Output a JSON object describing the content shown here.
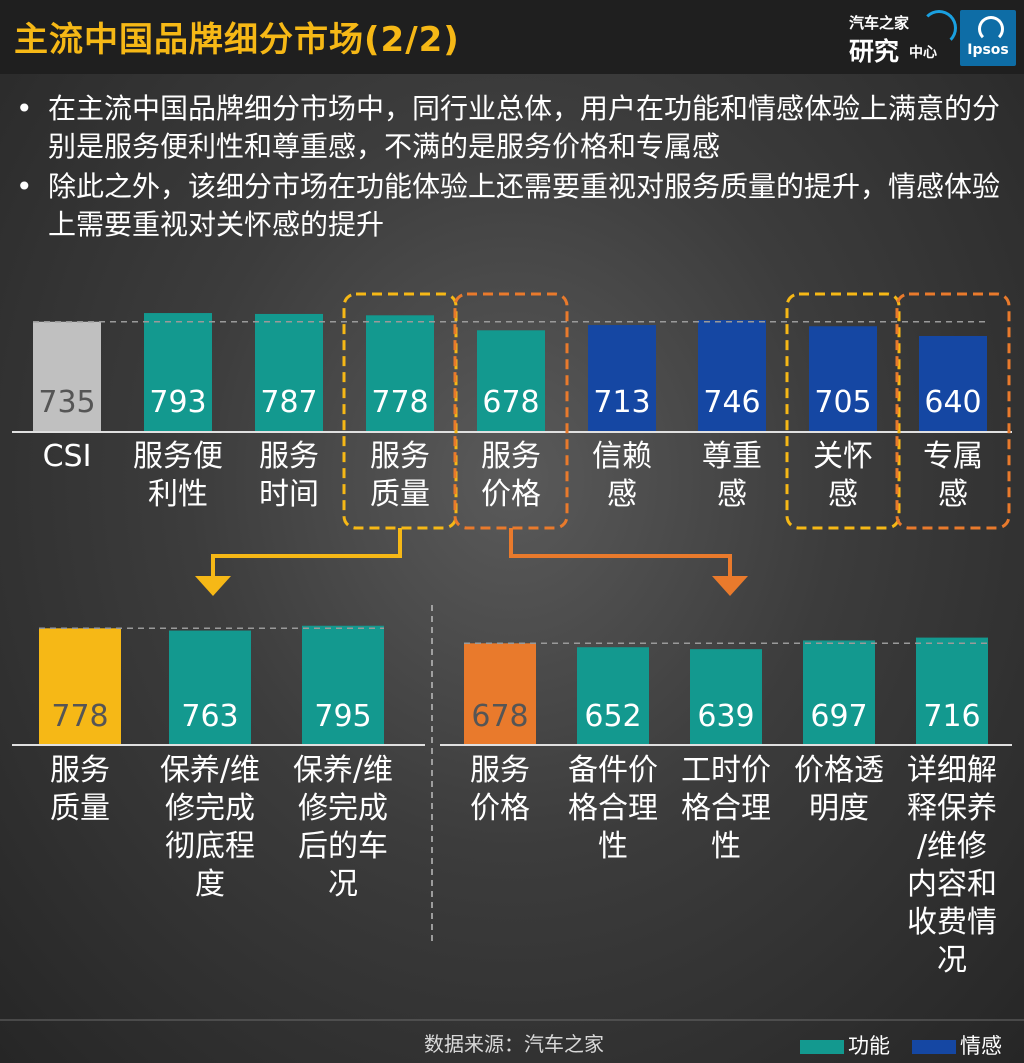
{
  "header": {
    "title": "主流中国品牌细分市场(2/2)",
    "logo_auto_top": "汽车之家",
    "logo_auto_main": "研究",
    "logo_auto_sub": "中心",
    "logo_ipsos": "Ipsos"
  },
  "bullets": [
    {
      "dot": "•",
      "text": "在主流中国品牌细分市场中，同行业总体，用户在功能和情感体验上满意的分别是服务便利性和尊重感，不满的是服务价格和专属感"
    },
    {
      "dot": "•",
      "text": "除此之外，该细分市场在功能体验上还需要重视对服务质量的提升，情感体验上需要重视对关怀感的提升"
    }
  ],
  "colors": {
    "functional": "#13998f",
    "emotional": "#1547a3",
    "csi": "#c0c0c0",
    "highlight_yellow": "#f6b816",
    "highlight_orange": "#e97a2c",
    "label": "#ffffff"
  },
  "chart_data": [
    {
      "type": "bar",
      "categories": [
        "CSI",
        "服务便利性",
        "服务时间",
        "服务质量",
        "服务价格",
        "信赖感",
        "尊重感",
        "关怀感",
        "专属感"
      ],
      "category_lines": [
        [
          "CSI"
        ],
        [
          "服务便",
          "利性"
        ],
        [
          "服务",
          "时间"
        ],
        [
          "服务",
          "质量"
        ],
        [
          "服务",
          "价格"
        ],
        [
          "信赖",
          "感"
        ],
        [
          "尊重",
          "感"
        ],
        [
          "关怀",
          "感"
        ],
        [
          "专属",
          "感"
        ]
      ],
      "values": [
        735,
        793,
        787,
        778,
        678,
        713,
        746,
        705,
        640
      ],
      "value_labels": [
        "735",
        "793",
        "787",
        "778",
        "678",
        "713",
        "746",
        "705",
        "640"
      ],
      "groups": [
        "csi",
        "functional",
        "functional",
        "functional",
        "functional",
        "emotional",
        "emotional",
        "emotional",
        "emotional"
      ],
      "reference_value": 735,
      "highlight_boxes": [
        {
          "category": "服务质量",
          "color": "yellow"
        },
        {
          "category": "服务价格",
          "color": "orange"
        },
        {
          "category": "关怀感",
          "color": "yellow"
        },
        {
          "category": "专属感",
          "color": "orange"
        }
      ]
    },
    {
      "type": "bar",
      "categories": [
        "服务质量",
        "保养/维修完成彻底程度",
        "保养/维修完成后的车况"
      ],
      "category_lines": [
        [
          "服务",
          "质量"
        ],
        [
          "保养/维",
          "修完成",
          "彻底程",
          "度"
        ],
        [
          "保养/维",
          "修完成",
          "后的车",
          "况"
        ]
      ],
      "values": [
        778,
        763,
        795
      ],
      "value_labels": [
        "778",
        "763",
        "795"
      ],
      "groups": [
        "highlight_yellow",
        "functional",
        "functional"
      ],
      "reference_value": 778
    },
    {
      "type": "bar",
      "categories": [
        "服务价格",
        "备件价格合理性",
        "工时价格合理性",
        "价格透明度",
        "详细解释保养/维修内容和收费情况"
      ],
      "category_lines": [
        [
          "服务",
          "价格"
        ],
        [
          "备件价",
          "格合理",
          "性"
        ],
        [
          "工时价",
          "格合理",
          "性"
        ],
        [
          "价格透",
          "明度"
        ],
        [
          "详细解",
          "释保养",
          "/维修",
          "内容和",
          "收费情",
          "况"
        ]
      ],
      "values": [
        678,
        652,
        639,
        697,
        716
      ],
      "value_labels": [
        "678",
        "652",
        "639",
        "697",
        "716"
      ],
      "groups": [
        "highlight_orange",
        "functional",
        "functional",
        "functional",
        "functional"
      ],
      "reference_value": 678
    }
  ],
  "footer": {
    "source": "数据来源：汽车之家",
    "legend": [
      {
        "label": "功能",
        "color": "#13998f"
      },
      {
        "label": "情感",
        "color": "#1547a3"
      }
    ]
  }
}
